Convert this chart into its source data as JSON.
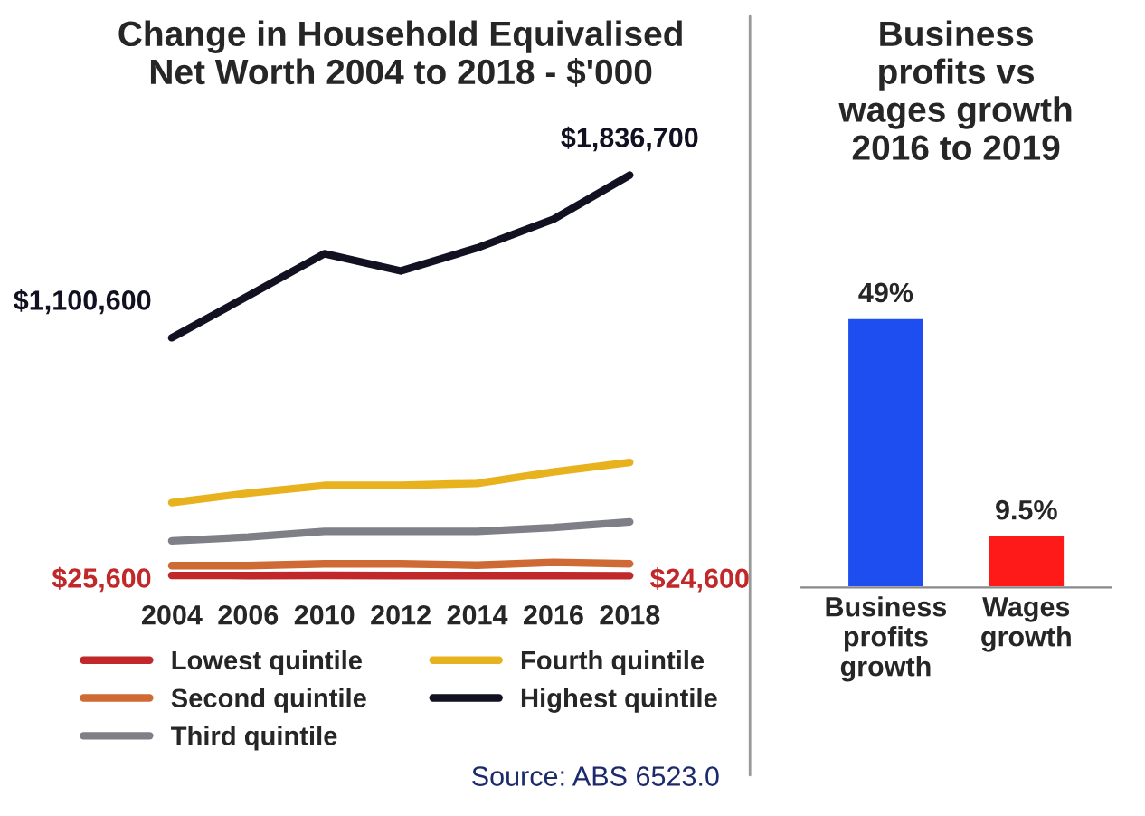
{
  "chart_data": [
    {
      "type": "line",
      "title": "Change in Household Equivalised\nNet Worth 2004 to 2018 - $'000",
      "categories": [
        "2004",
        "2006",
        "2010",
        "2012",
        "2014",
        "2016",
        "2018"
      ],
      "tick_labels": "x",
      "grid": false,
      "legend": "bottom",
      "marker": "none",
      "line_style": "solid",
      "series": [
        {
          "name": "Lowest quintile",
          "color": "#c0282a",
          "values": [
            25600,
            25000,
            26000,
            25000,
            25000,
            25000,
            24600
          ],
          "value_labels": [
            "$25,600",
            null,
            null,
            null,
            null,
            null,
            "$24,600"
          ]
        },
        {
          "name": "Second quintile",
          "color": "#d06a35",
          "values": [
            70000,
            70000,
            78000,
            78000,
            72000,
            85000,
            78000
          ]
        },
        {
          "name": "Third quintile",
          "color": "#7f7f87",
          "values": [
            182000,
            199000,
            225000,
            225000,
            225000,
            242000,
            268000
          ]
        },
        {
          "name": "Fourth quintile",
          "color": "#e8b21e",
          "values": [
            355000,
            398000,
            433000,
            433000,
            442000,
            494000,
            537000
          ]
        },
        {
          "name": "Highest quintile",
          "color": "#111122",
          "values": [
            1100600,
            1290000,
            1481000,
            1403000,
            1507000,
            1637000,
            1836700
          ],
          "value_labels": [
            "$1,100,600",
            null,
            null,
            null,
            null,
            null,
            "$1,836,700"
          ]
        }
      ],
      "annotations": [
        "Source: ABS 6523.0"
      ]
    },
    {
      "type": "bar",
      "title": "Business\nprofits vs\nwages growth\n2016 to 2019",
      "categories": [
        "Business\nprofits\ngrowth",
        "Wages\ngrowth"
      ],
      "values": [
        49,
        9.5
      ],
      "colors": [
        "#1f4ef0",
        "#ff1a1a"
      ],
      "value_labels": [
        "49%",
        "9.5%"
      ],
      "tick_labels": "x",
      "grid": false
    }
  ]
}
